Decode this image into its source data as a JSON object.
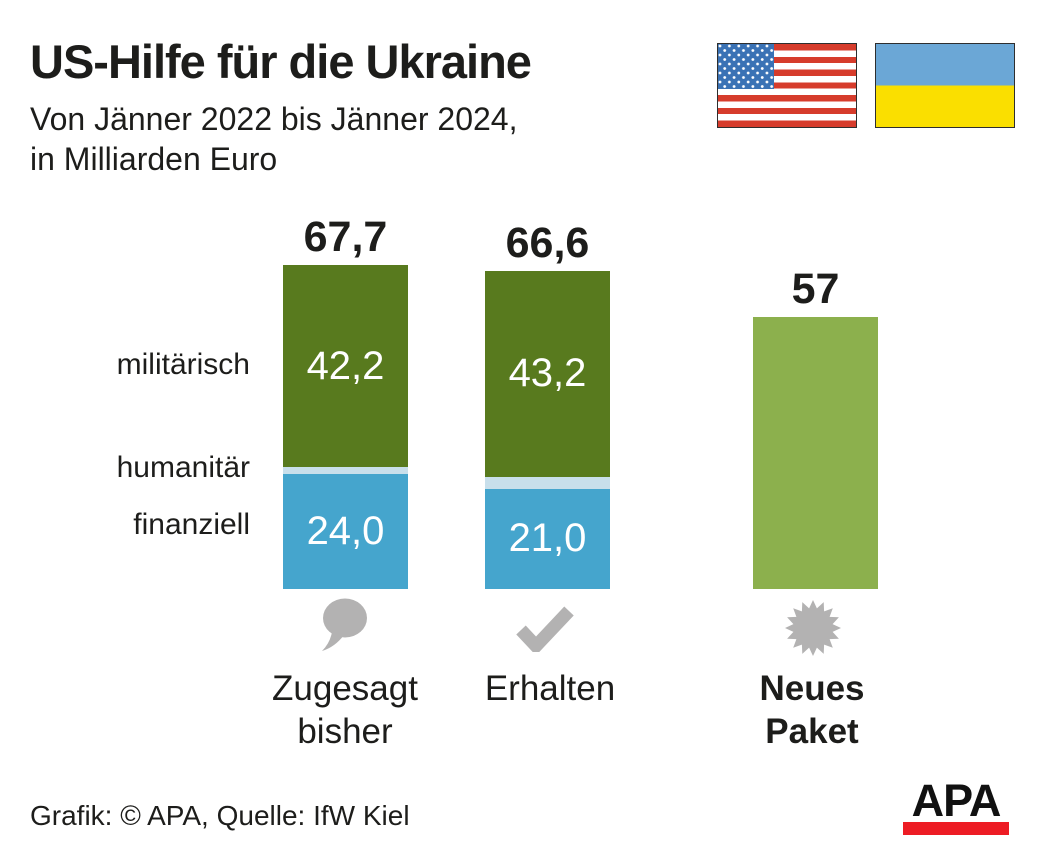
{
  "header": {
    "title": "US-Hilfe für die Ukraine",
    "subtitle_lines": [
      "Von Jänner 2022 bis Jänner 2024,",
      "in Milliarden Euro"
    ]
  },
  "icons": {
    "us_flag": "us-flag",
    "ukraine_flag": "ukraine-flag",
    "zugesagt": "speech-bubble",
    "erhalten": "checkmark",
    "neues_paket": "starburst"
  },
  "colors": {
    "military_green": "#587a1e",
    "humanitarian_lightblue": "#c8dfeb",
    "financial_blue": "#45a5cd",
    "new_package_green": "#8cb04d",
    "icon_gray": "#b3b2b2",
    "logo_red": "#ed1c24",
    "text": "#1d1d1b"
  },
  "chart_data": {
    "type": "bar",
    "variant": "stacked-vertical",
    "title": "US-Hilfe für die Ukraine",
    "subtitle": "Von Jänner 2022 bis Jänner 2024, in Milliarden Euro",
    "unit": "Milliarden Euro",
    "grid": false,
    "ylim": [
      0,
      70
    ],
    "categories": [
      "Zugesagt bisher",
      "Erhalten",
      "Neues Paket"
    ],
    "side_labels": [
      "militärisch",
      "humanitär",
      "finanziell"
    ],
    "totals": [
      67.7,
      66.6,
      57
    ],
    "bars": [
      {
        "category": "Zugesagt bisher",
        "category_lines": [
          "Zugesagt",
          "bisher"
        ],
        "icon": "speech-bubble",
        "total": 67.7,
        "total_display": "67,7",
        "segments": [
          {
            "name": "militärisch",
            "value": 42.2,
            "display": "42,2",
            "color": "#587a1e"
          },
          {
            "name": "humanitär",
            "value": 1.5,
            "display": "",
            "color": "#c8dfeb"
          },
          {
            "name": "finanziell",
            "value": 24.0,
            "display": "24,0",
            "color": "#45a5cd"
          }
        ]
      },
      {
        "category": "Erhalten",
        "category_lines": [
          "Erhalten"
        ],
        "icon": "checkmark",
        "total": 66.6,
        "total_display": "66,6",
        "segments": [
          {
            "name": "militärisch",
            "value": 43.2,
            "display": "43,2",
            "color": "#587a1e"
          },
          {
            "name": "humanitär",
            "value": 2.4,
            "display": "",
            "color": "#c8dfeb"
          },
          {
            "name": "finanziell",
            "value": 21.0,
            "display": "21,0",
            "color": "#45a5cd"
          }
        ]
      },
      {
        "category": "Neues Paket",
        "category_lines": [
          "Neues",
          "Paket"
        ],
        "icon": "starburst",
        "total": 57,
        "total_display": "57",
        "segments": [
          {
            "name": "Neues Paket",
            "value": 57,
            "display": "",
            "color": "#8cb04d"
          }
        ]
      }
    ]
  },
  "footer": {
    "credit": "Grafik: © APA, Quelle: IfW Kiel",
    "logo_text": "APA"
  }
}
